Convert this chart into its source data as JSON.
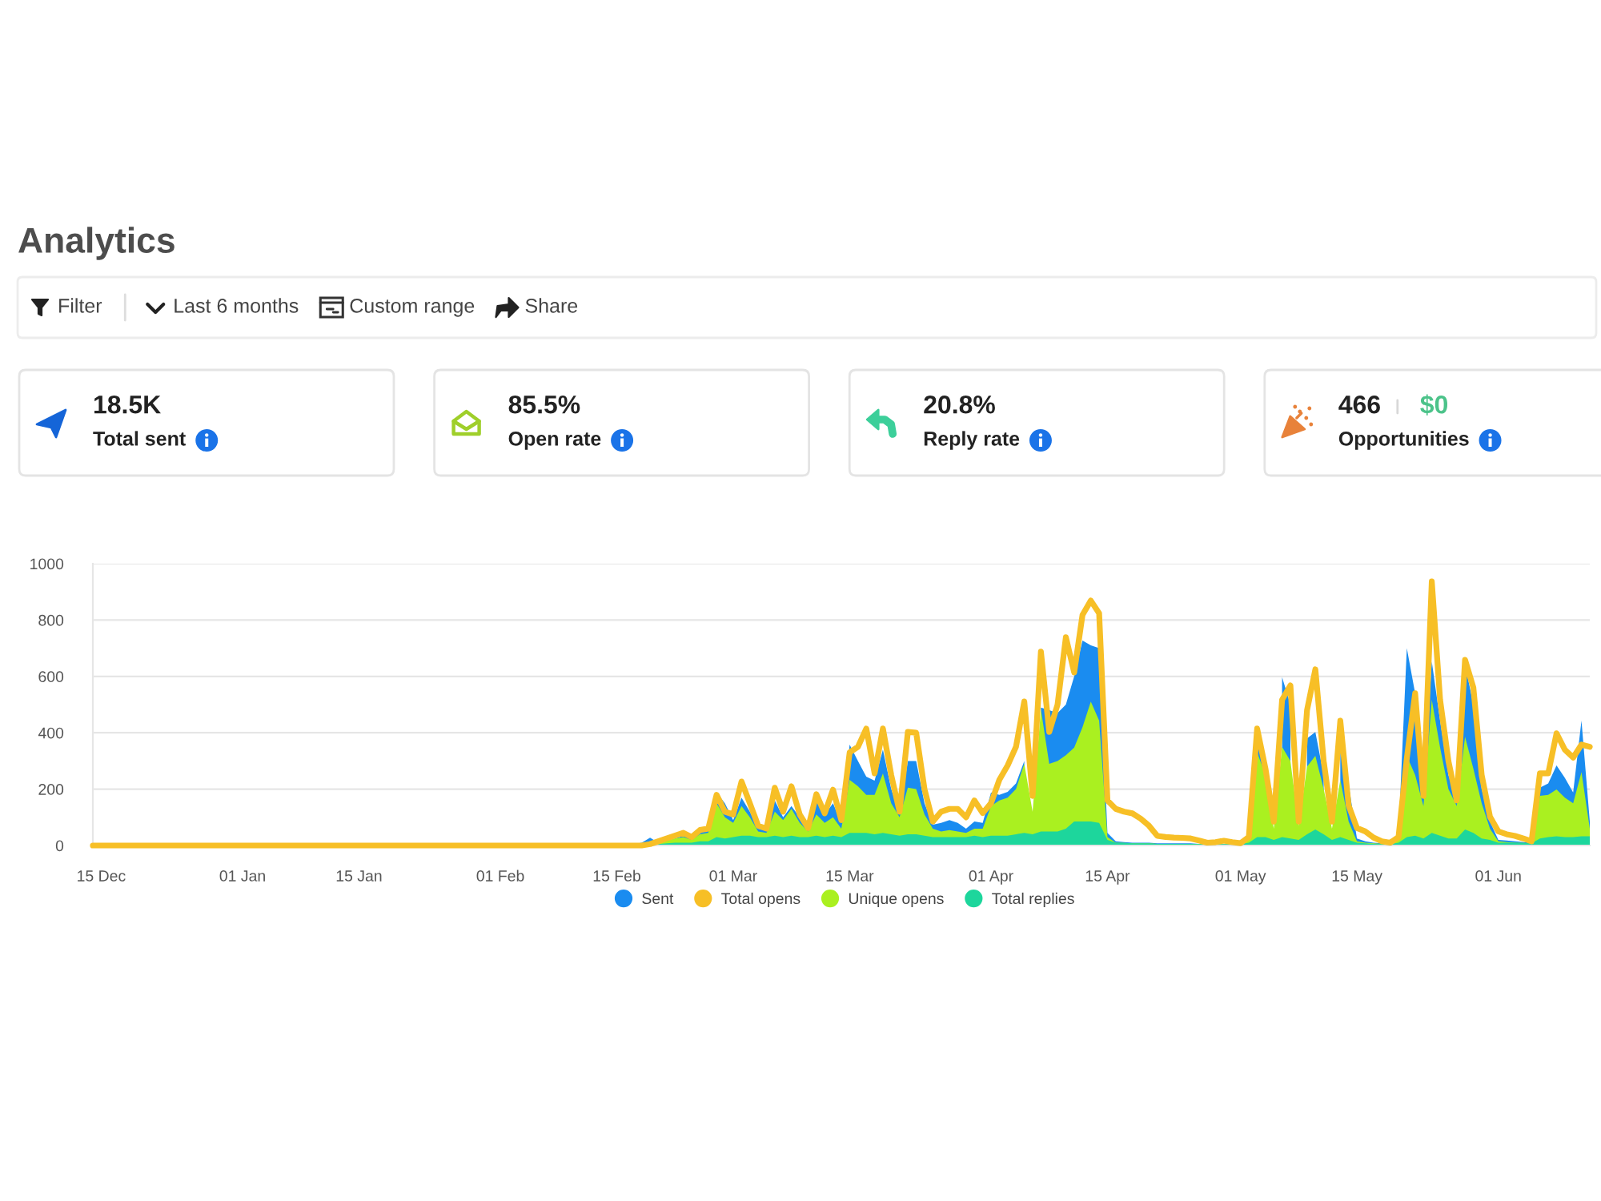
{
  "chart_data": [
    {
      "type": "other",
      "title": "Analytics",
      "annotations": [
        "Filter",
        "Last 6 months",
        "Custom range",
        "Share"
      ]
    },
    {
      "type": "other",
      "annotations": [
        "18.5K",
        "Total sent"
      ]
    },
    {
      "type": "other",
      "annotations": [
        "85.5%",
        "Open rate"
      ]
    },
    {
      "type": "other",
      "annotations": [
        "20.8%",
        "Reply rate"
      ]
    },
    {
      "type": "other",
      "annotations": [
        "466",
        "$0",
        "Opportunities"
      ]
    },
    {
      "type": "area",
      "categories": [
        null,
        "15 Dec",
        null,
        null,
        null,
        null,
        null,
        null,
        null,
        null,
        null,
        null,
        null,
        null,
        null,
        null,
        null,
        null,
        "01 Jan",
        null,
        null,
        null,
        null,
        null,
        null,
        null,
        null,
        null,
        null,
        null,
        null,
        null,
        "15 Jan",
        null,
        null,
        null,
        null,
        null,
        null,
        null,
        null,
        null,
        null,
        null,
        null,
        null,
        null,
        null,
        null,
        "01 Feb",
        null,
        null,
        null,
        null,
        null,
        null,
        null,
        null,
        null,
        null,
        null,
        null,
        null,
        "15 Feb",
        null,
        null,
        null,
        null,
        null,
        null,
        null,
        null,
        null,
        null,
        null,
        null,
        null,
        "01 Mar",
        null,
        null,
        null,
        null,
        null,
        null,
        null,
        null,
        null,
        null,
        null,
        null,
        null,
        "15 Mar",
        null,
        null,
        null,
        null,
        null,
        null,
        null,
        null,
        null,
        null,
        null,
        null,
        null,
        null,
        null,
        null,
        "01 Apr",
        null,
        null,
        null,
        null,
        null,
        null,
        null,
        null,
        null,
        null,
        null,
        null,
        null,
        "15 Apr",
        null,
        null,
        null,
        null,
        null,
        null,
        null,
        null,
        null,
        null,
        null,
        null,
        null,
        null,
        null,
        "01 May",
        null,
        null,
        null,
        null,
        null,
        null,
        null,
        null,
        null,
        null,
        null,
        null,
        null,
        "15 May",
        null,
        null,
        null,
        null,
        null,
        null,
        null,
        null,
        null,
        null,
        null,
        null,
        null,
        null,
        null,
        null,
        "01 Jun",
        null,
        null,
        null,
        null,
        null,
        null,
        null,
        null,
        null,
        null,
        null
      ],
      "series": [
        {
          "name": "Sent",
          "type": "area",
          "color": "#1a8cf0",
          "values": [
            0,
            0,
            0,
            0,
            0,
            0,
            0,
            0,
            0,
            0,
            0,
            0,
            0,
            0,
            0,
            0,
            0,
            0,
            0,
            0,
            0,
            0,
            0,
            0,
            0,
            0,
            0,
            0,
            0,
            0,
            0,
            0,
            0,
            0,
            0,
            0,
            0,
            0,
            0,
            0,
            0,
            0,
            0,
            0,
            0,
            0,
            0,
            0,
            0,
            0,
            0,
            0,
            0,
            0,
            0,
            0,
            0,
            0,
            0,
            0,
            0,
            0,
            0,
            0,
            0,
            5,
            10,
            28,
            10,
            15,
            25,
            35,
            25,
            45,
            60,
            188,
            150,
            90,
            170,
            120,
            60,
            55,
            160,
            100,
            140,
            100,
            60,
            182,
            110,
            150,
            80,
            358,
            300,
            244,
            230,
            340,
            200,
            110,
            300,
            300,
            150,
            74,
            80,
            90,
            80,
            60,
            85,
            80,
            188,
            180,
            190,
            220,
            300,
            null,
            489,
            480,
            470,
            500,
            600,
            727,
            710,
            700,
            45,
            15,
            12,
            10,
            10,
            10,
            8,
            8,
            8,
            8,
            8,
            6,
            5,
            5,
            5,
            6,
            10,
            30,
            380,
            300,
            null,
            597,
            500,
            null,
            380,
            403,
            250,
            null,
            455,
            216,
            25,
            15,
            10,
            8,
            8,
            40,
            700,
            540,
            176,
            653,
            443,
            250,
            160,
            642,
            500,
            200,
            85,
            20,
            18,
            15,
            12,
            10,
            205,
            220,
            284,
            240,
            188,
            443,
            85
          ]
        },
        {
          "name": "Total opens",
          "type": "line",
          "color": "#f7bf26",
          "values": [
            0,
            0,
            0,
            0,
            0,
            0,
            0,
            0,
            0,
            0,
            0,
            0,
            0,
            0,
            0,
            0,
            0,
            0,
            0,
            0,
            0,
            0,
            0,
            0,
            0,
            0,
            0,
            0,
            0,
            0,
            0,
            0,
            0,
            0,
            0,
            0,
            0,
            0,
            0,
            0,
            0,
            0,
            0,
            0,
            0,
            0,
            0,
            0,
            0,
            0,
            0,
            0,
            0,
            0,
            0,
            0,
            0,
            0,
            0,
            0,
            0,
            0,
            0,
            0,
            0,
            0,
            0,
            5,
            15,
            25,
            35,
            45,
            30,
            55,
            60,
            180,
            120,
            110,
            227,
            150,
            70,
            60,
            205,
            120,
            210,
            110,
            62,
            182,
            114,
            198,
            90,
            330,
            350,
            415,
            256,
            415,
            250,
            120,
            403,
            400,
            200,
            85,
            120,
            130,
            130,
            100,
            160,
            115,
            150,
            233,
            284,
            350,
            511,
            176,
            688,
            403,
            500,
            739,
            614,
            818,
            869,
            824,
            160,
            130,
            120,
            114,
            95,
            70,
            34,
            30,
            28,
            27,
            25,
            18,
            10,
            12,
            17,
            12,
            8,
            30,
            415,
            273,
            85,
            517,
            568,
            85,
            480,
            625,
            300,
            85,
            443,
            142,
            62,
            50,
            28,
            15,
            10,
            30,
            310,
            540,
            176,
            937,
            517,
            300,
            160,
            659,
            560,
            250,
            102,
            50,
            40,
            34,
            25,
            15,
            256,
            256,
            398,
            340,
            312,
            358,
            350
          ]
        },
        {
          "name": "Unique opens",
          "type": "area",
          "color": "#aaf020",
          "values": [
            0,
            0,
            0,
            0,
            0,
            0,
            0,
            0,
            0,
            0,
            0,
            0,
            0,
            0,
            0,
            0,
            0,
            0,
            0,
            0,
            0,
            0,
            0,
            0,
            0,
            0,
            0,
            0,
            0,
            0,
            0,
            0,
            0,
            0,
            0,
            0,
            0,
            0,
            0,
            0,
            0,
            0,
            0,
            0,
            0,
            0,
            0,
            0,
            0,
            0,
            0,
            0,
            0,
            0,
            0,
            0,
            0,
            0,
            0,
            0,
            0,
            0,
            0,
            0,
            0,
            0,
            0,
            5,
            10,
            18,
            25,
            30,
            20,
            40,
            45,
            150,
            100,
            80,
            140,
            100,
            50,
            45,
            120,
            90,
            130,
            80,
            50,
            110,
            80,
            100,
            60,
            233,
            210,
            180,
            180,
            256,
            150,
            100,
            205,
            200,
            110,
            60,
            50,
            55,
            50,
            45,
            60,
            60,
            140,
            160,
            170,
            200,
            290,
            120,
            483,
            290,
            300,
            320,
            347,
            420,
            511,
            443,
            30,
            10,
            9,
            8,
            8,
            8,
            6,
            6,
            6,
            6,
            6,
            5,
            4,
            4,
            4,
            5,
            8,
            20,
            330,
            250,
            60,
            350,
            300,
            70,
            280,
            318,
            200,
            60,
            233,
            85,
            15,
            10,
            8,
            6,
            6,
            30,
            318,
            250,
            140,
            517,
            347,
            200,
            140,
            386,
            273,
            150,
            60,
            15,
            12,
            10,
            9,
            8,
            176,
            180,
            199,
            170,
            150,
            261,
            60
          ]
        },
        {
          "name": "Total replies",
          "type": "area",
          "color": "#1dd69c",
          "values": [
            0,
            0,
            0,
            0,
            0,
            0,
            0,
            0,
            0,
            0,
            0,
            0,
            0,
            0,
            0,
            0,
            0,
            0,
            0,
            0,
            0,
            0,
            0,
            0,
            0,
            0,
            0,
            0,
            0,
            0,
            0,
            0,
            0,
            0,
            0,
            0,
            0,
            0,
            0,
            0,
            0,
            0,
            0,
            0,
            0,
            0,
            0,
            0,
            0,
            0,
            0,
            0,
            0,
            0,
            0,
            0,
            0,
            0,
            0,
            0,
            0,
            0,
            0,
            0,
            0,
            0,
            0,
            5,
            5,
            8,
            10,
            10,
            10,
            15,
            15,
            30,
            25,
            30,
            35,
            35,
            30,
            30,
            35,
            30,
            35,
            30,
            30,
            35,
            30,
            35,
            30,
            45,
            45,
            45,
            40,
            45,
            40,
            35,
            40,
            40,
            35,
            30,
            30,
            30,
            30,
            30,
            35,
            30,
            35,
            35,
            35,
            40,
            45,
            40,
            50,
            50,
            50,
            60,
            85,
            85,
            85,
            80,
            20,
            10,
            9,
            8,
            8,
            8,
            6,
            6,
            6,
            6,
            6,
            5,
            4,
            4,
            4,
            5,
            5,
            10,
            30,
            30,
            20,
            30,
            25,
            20,
            40,
            57,
            40,
            20,
            30,
            20,
            10,
            8,
            6,
            5,
            5,
            10,
            30,
            35,
            25,
            45,
            35,
            25,
            25,
            57,
            45,
            25,
            20,
            10,
            10,
            10,
            9,
            8,
            25,
            30,
            33,
            30,
            30,
            33,
            33
          ]
        }
      ],
      "ylim": [
        0,
        1000
      ],
      "yticks": [
        0,
        200,
        400,
        600,
        800,
        1000
      ],
      "grid": "y",
      "legend": "bottom"
    }
  ]
}
